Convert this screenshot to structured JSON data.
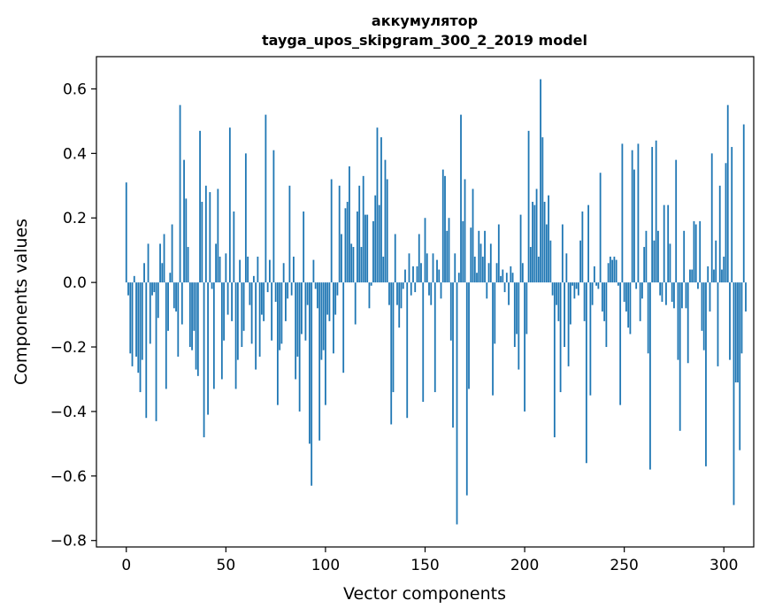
{
  "chart_data": {
    "type": "bar",
    "title_line1": "аккумулятор",
    "title_line2": "tayga_upos_skipgram_300_2_2019 model",
    "xlabel": "Vector components",
    "ylabel": "Components values",
    "xlim": [
      -15,
      315
    ],
    "ylim": [
      -0.82,
      0.7
    ],
    "xticks": [
      0,
      50,
      100,
      150,
      200,
      250,
      300
    ],
    "xtick_labels": [
      "0",
      "50",
      "100",
      "150",
      "200",
      "250",
      "300"
    ],
    "yticks": [
      -0.8,
      -0.6,
      -0.4,
      -0.2,
      0.0,
      0.2,
      0.4,
      0.6
    ],
    "ytick_labels": [
      "−0.8",
      "−0.6",
      "−0.4",
      "−0.2",
      "0.0",
      "0.2",
      "0.4",
      "0.6"
    ],
    "color": "#1f77b4",
    "values": [
      0.31,
      -0.04,
      -0.22,
      -0.26,
      0.02,
      -0.23,
      -0.28,
      -0.34,
      -0.24,
      0.06,
      -0.42,
      0.12,
      -0.19,
      -0.04,
      -0.03,
      -0.43,
      -0.11,
      0.12,
      0.06,
      0.15,
      -0.33,
      -0.15,
      0.03,
      0.18,
      -0.08,
      -0.09,
      -0.23,
      0.55,
      -0.13,
      0.38,
      0.26,
      0.11,
      -0.2,
      -0.21,
      -0.15,
      -0.27,
      -0.29,
      0.47,
      0.25,
      -0.48,
      0.3,
      -0.41,
      0.28,
      -0.02,
      -0.33,
      0.12,
      0.29,
      0.08,
      -0.3,
      -0.18,
      0.09,
      -0.1,
      0.48,
      -0.12,
      0.22,
      -0.33,
      -0.24,
      0.07,
      -0.2,
      -0.15,
      0.4,
      0.08,
      -0.07,
      -0.19,
      0.02,
      -0.27,
      0.08,
      -0.23,
      -0.1,
      -0.12,
      0.52,
      -0.03,
      0.07,
      -0.18,
      0.41,
      -0.06,
      -0.38,
      -0.21,
      -0.19,
      0.06,
      -0.12,
      -0.05,
      0.3,
      -0.04,
      0.08,
      -0.3,
      -0.23,
      -0.4,
      -0.16,
      0.22,
      -0.18,
      -0.07,
      -0.5,
      -0.63,
      0.07,
      -0.02,
      -0.08,
      -0.49,
      -0.24,
      -0.21,
      -0.38,
      -0.1,
      -0.12,
      0.32,
      -0.22,
      -0.1,
      -0.04,
      0.3,
      0.15,
      -0.28,
      0.23,
      0.25,
      0.36,
      0.12,
      0.11,
      -0.13,
      0.22,
      0.3,
      0.11,
      0.33,
      0.21,
      0.21,
      -0.08,
      -0.01,
      0.19,
      0.27,
      0.48,
      0.24,
      0.45,
      0.08,
      0.38,
      0.32,
      -0.07,
      -0.44,
      -0.34,
      0.15,
      -0.07,
      -0.14,
      -0.08,
      -0.02,
      0.04,
      -0.42,
      0.09,
      -0.04,
      0.05,
      -0.03,
      0.05,
      0.15,
      0.06,
      -0.37,
      0.2,
      0.09,
      -0.04,
      -0.07,
      0.09,
      -0.34,
      0.07,
      0.04,
      -0.05,
      0.35,
      0.33,
      0.16,
      0.2,
      -0.18,
      -0.45,
      0.09,
      -0.75,
      0.03,
      0.52,
      0.19,
      0.32,
      -0.66,
      -0.33,
      0.17,
      0.29,
      0.08,
      0.03,
      0.16,
      0.12,
      0.08,
      0.16,
      -0.05,
      0.06,
      0.12,
      -0.35,
      -0.19,
      0.06,
      0.18,
      0.02,
      0.04,
      -0.03,
      0.03,
      -0.07,
      0.05,
      0.03,
      -0.2,
      -0.16,
      -0.27,
      0.21,
      0.06,
      -0.4,
      -0.16,
      0.47,
      0.11,
      0.25,
      0.24,
      0.29,
      0.08,
      0.63,
      0.45,
      0.25,
      0.18,
      0.27,
      0.13,
      -0.04,
      -0.48,
      -0.07,
      -0.12,
      -0.34,
      0.18,
      -0.2,
      0.09,
      -0.26,
      -0.13,
      -0.01,
      -0.05,
      -0.02,
      -0.04,
      0.13,
      0.22,
      -0.12,
      -0.56,
      0.24,
      -0.35,
      -0.07,
      0.05,
      -0.01,
      -0.02,
      0.34,
      -0.09,
      -0.12,
      -0.2,
      0.06,
      0.08,
      0.07,
      0.08,
      0.07,
      -0.01,
      -0.38,
      0.43,
      -0.06,
      -0.09,
      -0.14,
      -0.16,
      0.41,
      0.35,
      -0.02,
      0.43,
      -0.12,
      -0.05,
      0.11,
      0.16,
      -0.22,
      -0.58,
      0.42,
      0.13,
      0.44,
      0.16,
      -0.04,
      -0.06,
      0.24,
      -0.07,
      0.24,
      0.12,
      -0.06,
      -0.08,
      0.38,
      -0.24,
      -0.46,
      -0.08,
      0.16,
      -0.08,
      -0.25,
      0.04,
      0.04,
      0.19,
      0.18,
      -0.02,
      0.19,
      -0.15,
      -0.21,
      -0.57,
      0.05,
      -0.09,
      0.4,
      0.04,
      0.13,
      -0.26,
      0.3,
      0.04,
      0.08,
      0.37,
      0.55,
      -0.24,
      0.42,
      -0.69,
      -0.31,
      -0.31,
      -0.52,
      -0.22,
      0.49,
      -0.09
    ]
  }
}
